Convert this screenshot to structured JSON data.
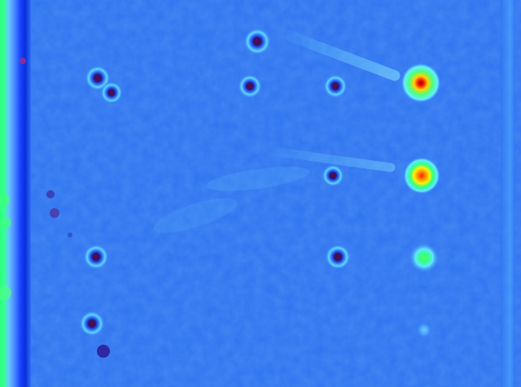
{
  "image": {
    "kind": "false-color intensity map",
    "colormap": [
      "#001a8c",
      "#0a3cff",
      "#2f7cff",
      "#3fb7ff",
      "#57ecff",
      "#32ff84",
      "#b6ff19",
      "#fff000",
      "#ff7a00",
      "#ff1000"
    ],
    "background_color": "#2f73f0",
    "left_band_colors": [
      "#3cff82",
      "#68a1ff",
      "#0a2fdc"
    ],
    "feature_count": 17
  }
}
